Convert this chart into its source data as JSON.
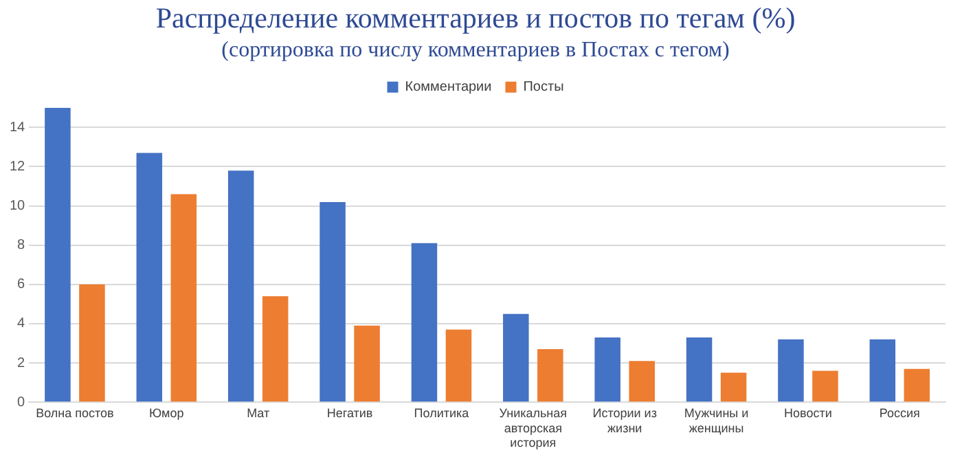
{
  "chart_data": {
    "type": "bar",
    "title": "Распределение комментариев и постов по тегам (%)",
    "subtitle": "(сортировка по числу комментариев в Постах с тегом)",
    "categories": [
      "Волна постов",
      "Юмор",
      "Мат",
      "Негатив",
      "Политика",
      "Уникальная авторская история",
      "Истории из жизни",
      "Мужчины и женщины",
      "Новости",
      "Россия"
    ],
    "series": [
      {
        "name": "Комментарии",
        "color": "#4472c4",
        "values": [
          15.0,
          12.7,
          11.8,
          10.2,
          8.1,
          4.5,
          3.3,
          3.3,
          3.2,
          3.2
        ]
      },
      {
        "name": "Посты",
        "color": "#ed7d31",
        "values": [
          6.0,
          10.6,
          5.4,
          3.9,
          3.7,
          2.7,
          2.1,
          1.5,
          1.6,
          1.7
        ]
      }
    ],
    "ylim": [
      0,
      15
    ],
    "yticks": [
      0,
      2,
      4,
      6,
      8,
      10,
      12,
      14
    ],
    "grid": "y",
    "legend": "top"
  }
}
